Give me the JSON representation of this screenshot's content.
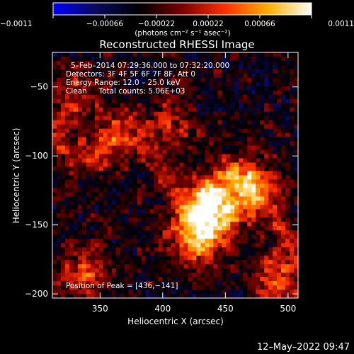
{
  "chart_data": {
    "type": "heatmap",
    "title": "Reconstructed RHESSI Image",
    "xlabel": "Heliocentric X (arcsec)",
    "ylabel": "Heliocentric Y (arcsec)",
    "xlim": [
      312,
      508
    ],
    "ylim": [
      -203,
      -25
    ],
    "x_ticks": [
      350,
      400,
      450,
      500
    ],
    "y_ticks": [
      -50,
      -100,
      -150,
      -200
    ],
    "x_tick_labels": [
      "350",
      "400",
      "450",
      "500"
    ],
    "y_tick_labels": [
      "−50",
      "−100",
      "−150",
      "−200"
    ],
    "colorbar": {
      "label": "(photons cm⁻² s⁻¹ asec⁻²)",
      "range": [
        -0.0011,
        0.0011
      ],
      "tick_labels": [
        "−0.0011",
        "−0.00066",
        "−0.00022",
        "0.00022",
        "0.00066",
        "0.0011"
      ],
      "colors": [
        "#0000ff",
        "#0a0a5a",
        "#000000",
        "#7a0000",
        "#ff3000",
        "#ffb000",
        "#ffffff"
      ]
    },
    "annotations": [
      "5–Feb–2014 07:29:36.000 to 07:32:20.000",
      "Detectors: 3F 4F 5F 6F 7F 8F, Att 0",
      "Energy Range: 12.0 – 25.0 keV",
      "Clean     Total counts: 5.06E+03"
    ],
    "peak_label": "Position of Peak = [436,−141]",
    "peak": [
      436,
      -141
    ],
    "hot_spots": [
      {
        "x": 440,
        "y": -140,
        "value": 0.0011
      },
      {
        "x": 425,
        "y": -160,
        "value": 0.0008
      },
      {
        "x": 470,
        "y": -125,
        "value": 0.0007
      },
      {
        "x": 405,
        "y": -80,
        "value": 0.0004
      },
      {
        "x": 330,
        "y": -60,
        "value": 0.0005
      },
      {
        "x": 360,
        "y": -95,
        "value": 0.0003
      },
      {
        "x": 490,
        "y": -190,
        "value": 0.0006
      },
      {
        "x": 340,
        "y": -185,
        "value": 0.0005
      }
    ]
  },
  "footer": {
    "timestamp": "12–May–2022 09:47"
  }
}
